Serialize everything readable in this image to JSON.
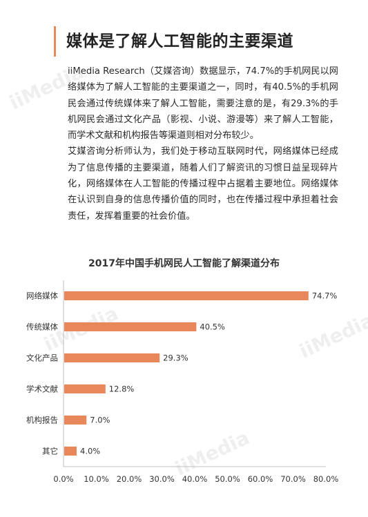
{
  "heading": "媒体是了解人工智能的主要渠道",
  "paragraph1": "iiMedia Research（艾媒咨询）数据显示，74.7%的手机网民以网络媒体为了解人工智能的主要渠道之一，同时，有40.5%的手机网民会通过传统媒体来了解人工智能，需要注意的是，有29.3%的手机网民会通过文化产品（影视、小说、游漫等）来了解人工智能，而学术文献和机构报告等渠道则相对分布较少。",
  "paragraph2": "艾媒咨询分析师认为，我们处于移动互联网时代，网络媒体已经成为了信息传播的主要渠道，随着人们了解资讯的习惯日益呈现碎片化，网络媒体在人工智能的传播过程中占据着主要地位。网络媒体在认识到自身的信息传播价值的同时，也在传播过程中承担着社会责任，发挥着重要的社会价值。",
  "watermark_text": "iiMedia",
  "colors": {
    "bar": "#e8875a",
    "accent": "#e8875a"
  },
  "chart_data": {
    "type": "bar",
    "orientation": "horizontal",
    "title": "2017年中国手机网民人工智能了解渠道分布",
    "categories": [
      "网络媒体",
      "传统媒体",
      "文化产品",
      "学术文献",
      "机构报告",
      "其它"
    ],
    "values": [
      74.7,
      40.5,
      29.3,
      12.8,
      7.0,
      4.0
    ],
    "value_labels": [
      "74.7%",
      "40.5%",
      "29.3%",
      "12.8%",
      "7.0%",
      "4.0%"
    ],
    "x_ticks": [
      "0.0%",
      "10.0%",
      "20.0%",
      "30.0%",
      "40.0%",
      "50.0%",
      "60.0%",
      "70.0%",
      "80.0%"
    ],
    "xlim": [
      0,
      80
    ],
    "grid": false,
    "xlabel": "",
    "ylabel": ""
  }
}
